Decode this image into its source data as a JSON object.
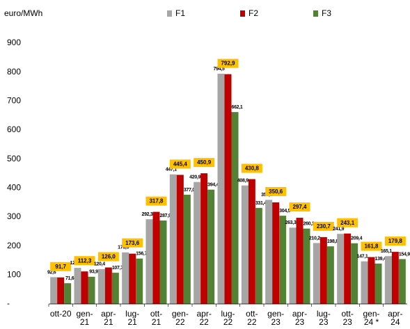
{
  "chart_data": {
    "type": "bar",
    "y_label": "euro/MWh",
    "categories": [
      "ott-20",
      "gen-21",
      "apr-21",
      "lug-21",
      "ott-21",
      "gen-22",
      "apr-22",
      "lug-22",
      "ott-22",
      "gen-23",
      "apr-23",
      "lug-23",
      "ott-23",
      "gen-24 *",
      "apr-24"
    ],
    "series": [
      {
        "name": "F1",
        "color": "#a6a6a6",
        "values": [
          92.6,
          124.5,
          120.4,
          178.0,
          292.3,
          447.1,
          420.9,
          794.5,
          408.9,
          359.1,
          263.3,
          210.2,
          241.9,
          147.1,
          165.1
        ],
        "value_labels": [
          "92,6",
          "124,5",
          "120,4",
          "178,0",
          "292,3",
          "447,1",
          "420,9",
          "794,5",
          "408,9",
          "359,1",
          "263,3",
          "210,2",
          "241,9",
          "147,1",
          "165,1"
        ]
      },
      {
        "name": "F2",
        "color": "#c00000",
        "values": [
          91.7,
          112.3,
          126.0,
          173.6,
          317.8,
          445.4,
          450.9,
          792.9,
          430.8,
          350.6,
          297.4,
          230.7,
          243.1,
          161.8,
          179.8
        ],
        "value_labels": [
          "91,7",
          "112,3",
          "126,0",
          "173,6",
          "317,8",
          "445,4",
          "450,9",
          "792,9",
          "430,8",
          "350,6",
          "297,4",
          "230,7",
          "243,1",
          "161,8",
          "179,8"
        ]
      },
      {
        "name": "F3",
        "color": "#548235",
        "values": [
          71.6,
          93.9,
          107.7,
          156.7,
          287.9,
          377.0,
          394.4,
          662.1,
          331.4,
          304.5,
          260.1,
          198.8,
          209.4,
          139.4,
          154.9
        ],
        "value_labels": [
          "71,6",
          "93,9",
          "107,7",
          "156,7",
          "287,9",
          "377,0",
          "394,4",
          "662,1",
          "331,4",
          "304,5",
          "260,1",
          "198,8",
          "209,4",
          "139,4",
          "154,9"
        ]
      }
    ],
    "ylim": [
      0,
      900
    ],
    "yticks": [
      {
        "value": 0,
        "label": "-"
      },
      100,
      200,
      300,
      400,
      500,
      600,
      700,
      800,
      900
    ]
  }
}
